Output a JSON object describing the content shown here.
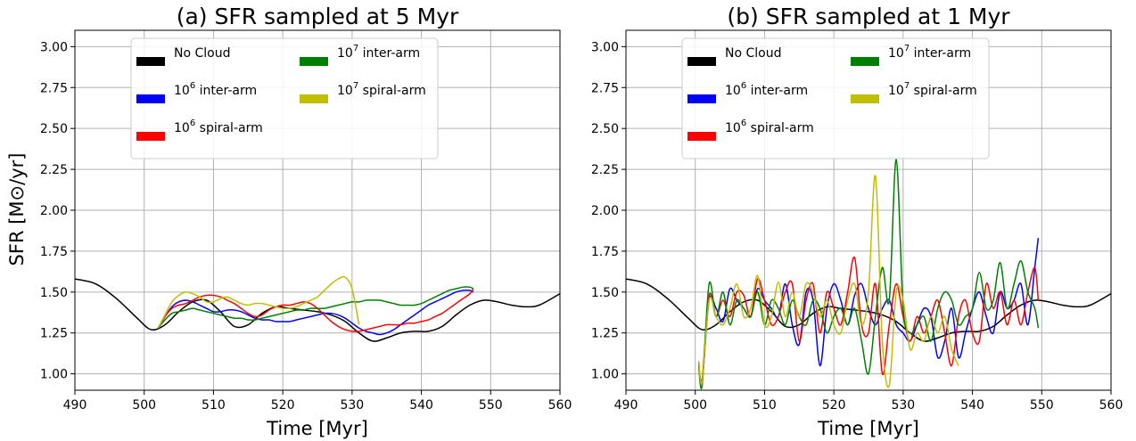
{
  "colors": {
    "no_cloud": "#000000",
    "inter6": "#0000ff",
    "spiral6": "#ff0000",
    "inter7": "#008000",
    "spiral7": "#bfbf00",
    "grid": "#b0b0b0"
  },
  "ylabel": "SFR [M⊙/yr]",
  "legend_labels": {
    "no_cloud": "No Cloud",
    "inter6": {
      "base": "10",
      "sup": "6",
      "text": " inter-arm"
    },
    "spiral6": {
      "base": "10",
      "sup": "6",
      "text": " spiral-arm"
    },
    "inter7": {
      "base": "10",
      "sup": "7",
      "text": " inter-arm"
    },
    "spiral7": {
      "base": "10",
      "sup": "7",
      "text": " spiral-arm"
    }
  },
  "chart_data": [
    {
      "type": "line",
      "title": "(a) SFR sampled at 5 Myr",
      "xlabel": "Time [Myr]",
      "ylabel": "SFR [M⊙/yr]",
      "xlim": [
        490,
        560
      ],
      "ylim": [
        0.9,
        3.1
      ],
      "xticks": [
        "490",
        "500",
        "510",
        "520",
        "530",
        "540",
        "550",
        "560"
      ],
      "yticks": [
        "1.00",
        "1.25",
        "1.50",
        "1.75",
        "2.00",
        "2.25",
        "2.50",
        "2.75",
        "3.00"
      ],
      "grid": true,
      "legend_location": "upper-center",
      "series": [
        {
          "key": "no_cloud",
          "x": [
            490,
            493,
            496,
            499,
            501,
            503,
            505,
            507,
            509,
            511,
            513,
            515,
            517,
            519,
            521,
            523,
            525,
            527,
            529,
            531,
            533,
            535,
            537,
            539,
            541,
            543,
            545,
            547,
            549,
            551,
            553,
            555,
            557,
            560
          ],
          "y": [
            1.58,
            1.55,
            1.46,
            1.34,
            1.27,
            1.3,
            1.38,
            1.44,
            1.45,
            1.38,
            1.29,
            1.3,
            1.37,
            1.41,
            1.4,
            1.39,
            1.38,
            1.36,
            1.32,
            1.25,
            1.2,
            1.22,
            1.25,
            1.26,
            1.26,
            1.29,
            1.36,
            1.42,
            1.45,
            1.44,
            1.42,
            1.41,
            1.42,
            1.49
          ]
        },
        {
          "key": "inter6",
          "x": [
            502,
            503,
            504,
            505,
            506,
            507,
            508,
            509,
            510,
            511,
            512,
            513,
            514,
            515,
            516,
            517,
            518,
            519,
            520,
            521,
            522,
            523,
            524,
            525,
            526,
            527,
            528,
            529,
            530,
            531,
            532,
            533,
            534,
            535,
            536,
            537,
            538,
            539,
            540,
            541,
            542,
            543,
            544,
            545,
            546,
            547,
            547.5
          ],
          "y": [
            1.28,
            1.35,
            1.41,
            1.44,
            1.45,
            1.44,
            1.42,
            1.4,
            1.38,
            1.38,
            1.39,
            1.39,
            1.38,
            1.36,
            1.34,
            1.33,
            1.33,
            1.32,
            1.32,
            1.32,
            1.33,
            1.34,
            1.35,
            1.36,
            1.37,
            1.37,
            1.36,
            1.34,
            1.31,
            1.28,
            1.26,
            1.25,
            1.24,
            1.25,
            1.27,
            1.3,
            1.33,
            1.36,
            1.39,
            1.42,
            1.44,
            1.46,
            1.48,
            1.5,
            1.51,
            1.51,
            1.5
          ]
        },
        {
          "key": "spiral6",
          "x": [
            502,
            503,
            504,
            505,
            506,
            507,
            508,
            509,
            510,
            511,
            512,
            513,
            514,
            515,
            516,
            517,
            518,
            519,
            520,
            521,
            522,
            523,
            524,
            525,
            526,
            527,
            528,
            529,
            530,
            531,
            532,
            533,
            534,
            535,
            536,
            537,
            538,
            539,
            540,
            541,
            542,
            543,
            544,
            545,
            546,
            547,
            547.5
          ],
          "y": [
            1.28,
            1.35,
            1.4,
            1.42,
            1.43,
            1.45,
            1.47,
            1.48,
            1.48,
            1.47,
            1.45,
            1.43,
            1.4,
            1.37,
            1.35,
            1.36,
            1.39,
            1.41,
            1.42,
            1.42,
            1.43,
            1.44,
            1.43,
            1.4,
            1.36,
            1.32,
            1.29,
            1.27,
            1.26,
            1.26,
            1.27,
            1.28,
            1.29,
            1.3,
            1.3,
            1.3,
            1.31,
            1.31,
            1.32,
            1.33,
            1.35,
            1.37,
            1.4,
            1.43,
            1.46,
            1.49,
            1.52
          ]
        },
        {
          "key": "inter7",
          "x": [
            502,
            503,
            504,
            505,
            506,
            507,
            508,
            509,
            510,
            511,
            512,
            513,
            514,
            515,
            516,
            517,
            518,
            519,
            520,
            521,
            522,
            523,
            524,
            525,
            526,
            527,
            528,
            529,
            530,
            531,
            532,
            533,
            534,
            535,
            536,
            537,
            538,
            539,
            540,
            541,
            542,
            543,
            544,
            545,
            546,
            547,
            547.5
          ],
          "y": [
            1.28,
            1.33,
            1.37,
            1.38,
            1.39,
            1.4,
            1.39,
            1.38,
            1.37,
            1.36,
            1.35,
            1.34,
            1.34,
            1.33,
            1.33,
            1.34,
            1.35,
            1.36,
            1.37,
            1.38,
            1.39,
            1.39,
            1.4,
            1.4,
            1.4,
            1.41,
            1.42,
            1.43,
            1.44,
            1.44,
            1.45,
            1.45,
            1.45,
            1.44,
            1.43,
            1.42,
            1.42,
            1.42,
            1.43,
            1.45,
            1.47,
            1.49,
            1.51,
            1.52,
            1.53,
            1.53,
            1.52
          ]
        },
        {
          "key": "spiral7",
          "x": [
            502,
            503,
            504,
            505,
            506,
            507,
            508,
            509,
            510,
            511,
            512,
            513,
            514,
            515,
            516,
            517,
            518,
            519,
            520,
            521,
            522,
            523,
            524,
            525,
            526,
            527,
            528,
            529,
            530,
            531
          ],
          "y": [
            1.28,
            1.36,
            1.44,
            1.48,
            1.5,
            1.49,
            1.47,
            1.44,
            1.44,
            1.46,
            1.47,
            1.45,
            1.43,
            1.42,
            1.43,
            1.43,
            1.42,
            1.41,
            1.4,
            1.4,
            1.41,
            1.43,
            1.45,
            1.47,
            1.51,
            1.55,
            1.58,
            1.59,
            1.52,
            1.3
          ]
        }
      ]
    },
    {
      "type": "line",
      "title": "(b) SFR sampled at 1 Myr",
      "xlabel": "Time [Myr]",
      "ylabel": "",
      "xlim": [
        490,
        560
      ],
      "ylim": [
        0.9,
        3.1
      ],
      "xticks": [
        "490",
        "500",
        "510",
        "520",
        "530",
        "540",
        "550",
        "560"
      ],
      "yticks": [
        "1.00",
        "1.25",
        "1.50",
        "1.75",
        "2.00",
        "2.25",
        "2.50",
        "2.75",
        "3.00"
      ],
      "grid": true,
      "legend_location": "upper-center",
      "series": [
        {
          "key": "no_cloud",
          "x": [
            490,
            493,
            496,
            499,
            501,
            503,
            505,
            507,
            509,
            511,
            513,
            515,
            517,
            519,
            521,
            523,
            525,
            527,
            529,
            531,
            533,
            535,
            537,
            539,
            541,
            543,
            545,
            547,
            549,
            551,
            553,
            555,
            557,
            560
          ],
          "y": [
            1.58,
            1.55,
            1.46,
            1.34,
            1.27,
            1.3,
            1.38,
            1.44,
            1.45,
            1.38,
            1.29,
            1.3,
            1.37,
            1.41,
            1.4,
            1.39,
            1.38,
            1.36,
            1.32,
            1.25,
            1.2,
            1.22,
            1.25,
            1.26,
            1.26,
            1.29,
            1.36,
            1.42,
            1.45,
            1.44,
            1.42,
            1.41,
            1.42,
            1.49
          ]
        },
        {
          "key": "inter6",
          "x": [
            500.5,
            501,
            502,
            503,
            504,
            505,
            506,
            507,
            508,
            509,
            510,
            511,
            512,
            513,
            514,
            515,
            516,
            517,
            518,
            519,
            520,
            521,
            522,
            523,
            524,
            525,
            526,
            527,
            528,
            529,
            530,
            531,
            532,
            533,
            534,
            535,
            536,
            537,
            538,
            539,
            540,
            541,
            542,
            543,
            544,
            545,
            546,
            547,
            548,
            549,
            549.5
          ],
          "y": [
            1.07,
            0.95,
            1.45,
            1.4,
            1.32,
            1.52,
            1.45,
            1.4,
            1.35,
            1.52,
            1.45,
            1.4,
            1.35,
            1.55,
            1.3,
            1.18,
            1.5,
            1.45,
            1.05,
            1.4,
            1.55,
            1.45,
            1.3,
            1.48,
            1.55,
            1.4,
            1.3,
            1.4,
            1.45,
            1.3,
            1.25,
            1.2,
            1.3,
            1.4,
            1.35,
            1.1,
            1.2,
            1.4,
            1.1,
            1.25,
            1.4,
            1.5,
            1.35,
            1.25,
            1.5,
            1.4,
            1.45,
            1.55,
            1.3,
            1.65,
            1.83
          ]
        },
        {
          "key": "spiral6",
          "x": [
            500.5,
            501,
            502,
            503,
            504,
            505,
            506,
            507,
            508,
            509,
            510,
            511,
            512,
            513,
            514,
            515,
            516,
            517,
            518,
            519,
            520,
            521,
            522,
            523,
            524,
            525,
            526,
            527,
            528,
            529,
            530,
            531,
            532,
            533,
            534,
            535,
            536,
            537,
            538,
            539,
            540,
            541,
            542,
            543,
            544,
            545,
            546,
            547,
            548,
            549,
            549.5
          ],
          "y": [
            1.05,
            0.97,
            1.48,
            1.35,
            1.45,
            1.35,
            1.5,
            1.48,
            1.35,
            1.58,
            1.45,
            1.3,
            1.35,
            1.5,
            1.55,
            1.2,
            1.45,
            1.55,
            1.25,
            1.5,
            1.4,
            1.3,
            1.5,
            1.71,
            1.3,
            1.25,
            1.55,
            1.0,
            1.3,
            1.55,
            1.35,
            1.2,
            1.35,
            1.25,
            1.35,
            1.45,
            1.25,
            1.05,
            1.35,
            1.45,
            1.25,
            1.2,
            1.55,
            1.4,
            1.5,
            1.3,
            1.45,
            1.3,
            1.5,
            1.65,
            1.45
          ]
        },
        {
          "key": "inter7",
          "x": [
            500.5,
            501,
            502,
            503,
            504,
            505,
            506,
            507,
            508,
            509,
            510,
            511,
            512,
            513,
            514,
            515,
            516,
            517,
            518,
            519,
            520,
            521,
            522,
            523,
            524,
            525,
            526,
            527,
            528,
            529,
            530,
            531,
            532,
            533,
            534,
            535,
            536,
            537,
            538,
            539,
            540,
            541,
            542,
            543,
            544,
            545,
            546,
            547,
            548,
            549,
            549.5
          ],
          "y": [
            1.05,
            0.93,
            1.55,
            1.35,
            1.5,
            1.3,
            1.45,
            1.4,
            1.35,
            1.5,
            1.3,
            1.45,
            1.4,
            1.3,
            1.45,
            1.35,
            1.3,
            1.45,
            1.4,
            1.25,
            1.35,
            1.4,
            1.3,
            1.4,
            1.2,
            1.0,
            1.35,
            1.65,
            1.45,
            2.31,
            1.4,
            1.25,
            1.3,
            1.35,
            1.2,
            1.4,
            1.5,
            1.45,
            1.3,
            1.35,
            1.4,
            1.62,
            1.4,
            1.45,
            1.68,
            1.4,
            1.55,
            1.69,
            1.5,
            1.4,
            1.28
          ]
        },
        {
          "key": "spiral7",
          "x": [
            500.5,
            501,
            502,
            503,
            504,
            505,
            506,
            507,
            508,
            509,
            510,
            511,
            512,
            513,
            514,
            515,
            516,
            517,
            518,
            519,
            520,
            521,
            522,
            523,
            524,
            525,
            526,
            527,
            528,
            529,
            530,
            531,
            532,
            533,
            534,
            535,
            536,
            537,
            538
          ],
          "y": [
            1.08,
            0.95,
            1.45,
            1.35,
            1.3,
            1.4,
            1.55,
            1.35,
            1.4,
            1.6,
            1.3,
            1.35,
            1.56,
            1.35,
            1.5,
            1.35,
            1.55,
            1.5,
            1.35,
            1.45,
            1.3,
            1.25,
            1.45,
            1.55,
            1.3,
            1.5,
            2.21,
            1.2,
            0.93,
            1.5,
            1.45,
            1.15,
            1.25,
            1.2,
            1.35,
            1.25,
            1.35,
            1.15,
            1.05
          ]
        }
      ]
    }
  ]
}
